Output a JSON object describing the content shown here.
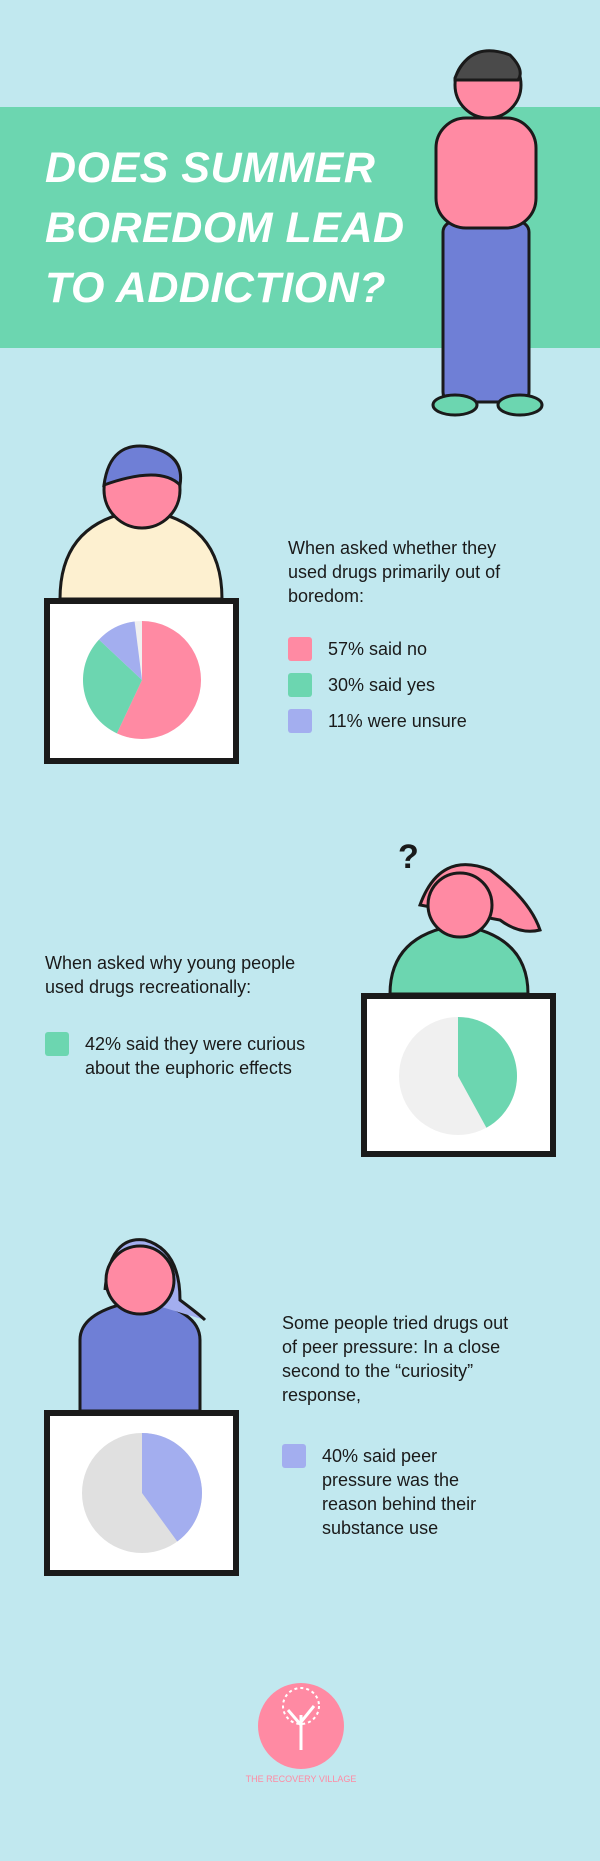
{
  "header": {
    "title": "DOES SUMMER BOREDOM LEAD TO ADDICTION?"
  },
  "sections": [
    {
      "intro": "When asked whether they used drugs primarily out of boredom:",
      "chart": {
        "type": "pie",
        "series": [
          {
            "name": "57% said no",
            "value": 57,
            "color": "#ff8aa3"
          },
          {
            "name": "30% said yes",
            "value": 30,
            "color": "#6cd6b0"
          },
          {
            "name": "11% were unsure",
            "value": 11,
            "color": "#a3aeef"
          }
        ]
      }
    },
    {
      "intro": "When asked why young people used drugs recreationally:",
      "chart": {
        "type": "pie",
        "series": [
          {
            "name": "42% said they were curious about the euphoric effects",
            "value": 42,
            "color": "#6cd6b0"
          }
        ]
      }
    },
    {
      "intro": "Some people tried drugs out of peer pressure: In a close second to the “curiosity” response,",
      "chart": {
        "type": "pie",
        "series": [
          {
            "name": "40% said peer pressure was the reason behind their substance use",
            "value": 40,
            "color": "#a3aeef"
          }
        ]
      }
    }
  ],
  "footer": {
    "brand": "THE RECOVERY VILLAGE"
  }
}
